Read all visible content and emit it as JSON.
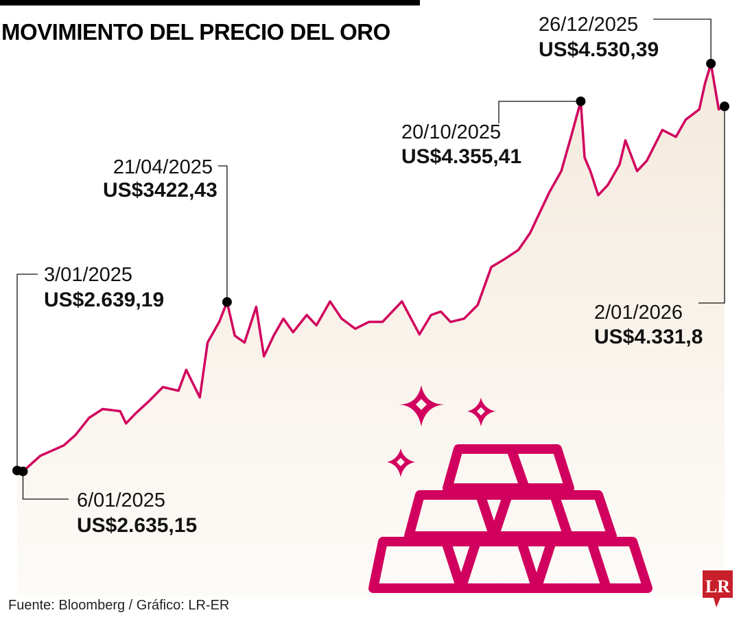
{
  "title": "MOVIMIENTO DEL PRECIO DEL ORO",
  "source": "Fuente: Bloomberg / Gráfico: LR-ER",
  "logo_text": "LR",
  "colors": {
    "line": "#d1005e",
    "fill_top": "#f4eadd",
    "fill_bottom": "#fdfbf8",
    "logo": "#c8202a",
    "icon": "#d1005e"
  },
  "icon": "gold-bars-with-sparkles",
  "chart_data": {
    "type": "area",
    "title": "MOVIMIENTO DEL PRECIO DEL ORO",
    "xlabel": "",
    "ylabel": "",
    "xlim": [
      "2025-01-03",
      "2026-01-02"
    ],
    "ylim": [
      2500,
      4600
    ],
    "grid": false,
    "axes_visible": false,
    "series": [
      {
        "x": [
          "2025-01-03",
          "2025-01-06",
          "2025-01-15",
          "2025-01-27",
          "2025-02-02",
          "2025-02-09",
          "2025-02-16",
          "2025-02-25",
          "2025-02-28",
          "2025-03-05",
          "2025-03-12",
          "2025-03-19",
          "2025-03-27",
          "2025-03-31",
          "2025-04-07",
          "2025-04-11",
          "2025-04-17",
          "2025-04-21",
          "2025-04-25",
          "2025-04-30",
          "2025-05-06",
          "2025-05-10",
          "2025-05-15",
          "2025-05-20",
          "2025-05-25",
          "2025-06-01",
          "2025-06-06",
          "2025-06-13",
          "2025-06-19",
          "2025-06-26",
          "2025-07-03",
          "2025-07-10",
          "2025-07-20",
          "2025-07-29",
          "2025-08-04",
          "2025-08-09",
          "2025-08-14",
          "2025-08-21",
          "2025-08-28",
          "2025-09-04",
          "2025-09-11",
          "2025-09-18",
          "2025-09-24",
          "2025-09-29",
          "2025-10-04",
          "2025-10-10",
          "2025-10-15",
          "2025-10-20",
          "2025-10-22",
          "2025-10-25",
          "2025-10-29",
          "2025-11-03",
          "2025-11-09",
          "2025-11-12",
          "2025-11-18",
          "2025-11-23",
          "2025-12-01",
          "2025-12-08",
          "2025-12-13",
          "2025-12-20",
          "2025-12-23",
          "2025-12-26",
          "2025-12-30",
          "2026-01-02"
        ],
        "y": [
          2639.19,
          2635.15,
          2708,
          2756,
          2804,
          2884,
          2925,
          2915,
          2858,
          2905,
          2963,
          3027,
          3010,
          3107,
          2979,
          3234,
          3330,
          3422.43,
          3266,
          3234,
          3400,
          3170,
          3266,
          3345,
          3282,
          3362,
          3314,
          3425,
          3345,
          3298,
          3330,
          3330,
          3425,
          3272,
          3362,
          3378,
          3330,
          3345,
          3409,
          3585,
          3623,
          3665,
          3744,
          3840,
          3935,
          4031,
          4190,
          4355.41,
          4094,
          4030,
          3919,
          3967,
          4062,
          4174,
          4031,
          4079,
          4222,
          4190,
          4270,
          4318,
          4440,
          4530.39,
          4318,
          4331.8
        ]
      }
    ],
    "annotations": [
      {
        "date": "3/01/2025",
        "value": "US$2.639,19",
        "x": "2025-01-03",
        "y": 2639.19
      },
      {
        "date": "6/01/2025",
        "value": "US$2.635,15",
        "x": "2025-01-06",
        "y": 2635.15
      },
      {
        "date": "21/04/2025",
        "value": "US$3422,43",
        "x": "2025-04-21",
        "y": 3422.43
      },
      {
        "date": "20/10/2025",
        "value": "US$4.355,41",
        "x": "2025-10-20",
        "y": 4355.41
      },
      {
        "date": "26/12/2025",
        "value": "US$4.530,39",
        "x": "2025-12-26",
        "y": 4530.39
      },
      {
        "date": "2/01/2026",
        "value": "US$4.331,8",
        "x": "2026-01-02",
        "y": 4331.8
      }
    ]
  }
}
